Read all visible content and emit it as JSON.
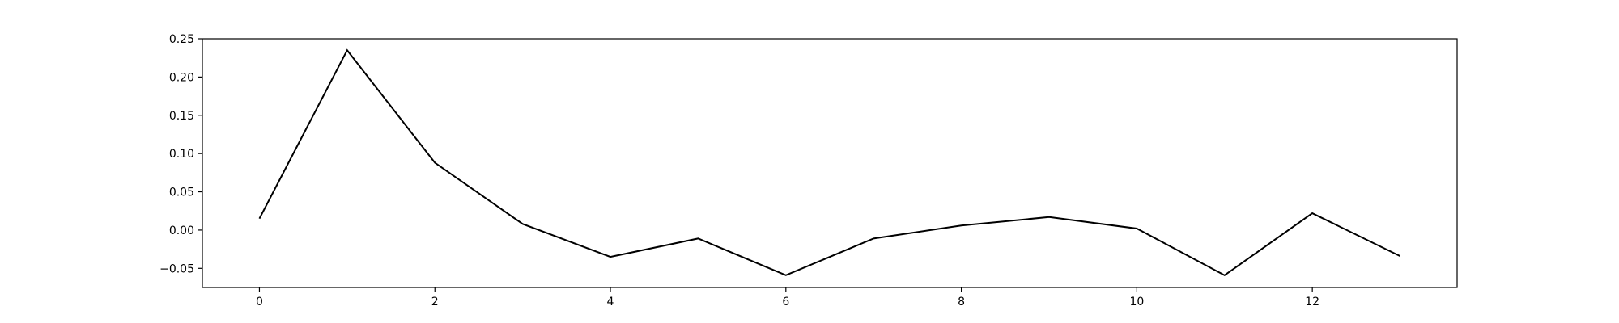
{
  "chart_data": {
    "type": "line",
    "title": "",
    "xlabel": "",
    "ylabel": "",
    "xlim": [
      -0.65,
      13.65
    ],
    "ylim": [
      -0.075,
      0.25
    ],
    "x_ticks": [
      0,
      2,
      4,
      6,
      8,
      10,
      12
    ],
    "x_tick_labels": [
      "0",
      "2",
      "4",
      "6",
      "8",
      "10",
      "12"
    ],
    "y_ticks": [
      -0.05,
      0.0,
      0.05,
      0.1,
      0.15,
      0.2,
      0.25
    ],
    "y_tick_labels": [
      "−0.05",
      "0.00",
      "0.05",
      "0.10",
      "0.15",
      "0.20",
      "0.25"
    ],
    "grid": false,
    "legend": false,
    "line_color": "#000000",
    "series": [
      {
        "x": [
          0,
          1,
          2,
          3,
          4,
          5,
          6,
          7,
          8,
          9,
          10,
          11,
          12,
          13
        ],
        "values": [
          0.015,
          0.235,
          0.088,
          0.008,
          -0.035,
          -0.011,
          -0.059,
          -0.011,
          0.006,
          0.017,
          0.002,
          -0.059,
          0.022,
          -0.034
        ]
      }
    ]
  }
}
